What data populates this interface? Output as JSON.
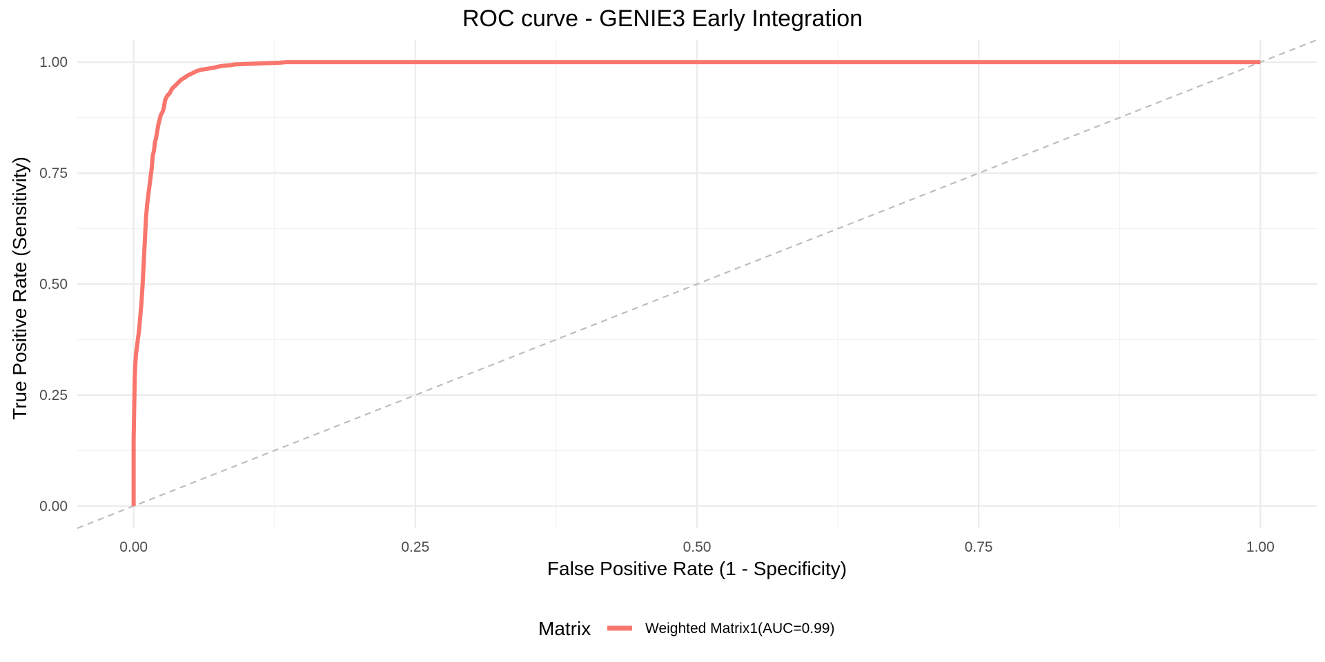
{
  "chart_data": {
    "type": "line",
    "title": "ROC curve - GENIE3 Early Integration",
    "xlabel": "False Positive Rate (1 - Specificity)",
    "ylabel": "True Positive Rate (Sensitivity)",
    "xlim": [
      -0.05,
      1.05
    ],
    "ylim": [
      -0.05,
      1.05
    ],
    "x_ticks": [
      0.0,
      0.25,
      0.5,
      0.75,
      1.0
    ],
    "x_tick_labels": [
      "0.00",
      "0.25",
      "0.50",
      "0.75",
      "1.00"
    ],
    "y_ticks": [
      0.0,
      0.25,
      0.5,
      0.75,
      1.0
    ],
    "y_tick_labels": [
      "0.00",
      "0.25",
      "0.50",
      "0.75",
      "1.00"
    ],
    "grid": true,
    "legend": {
      "title": "Matrix",
      "position": "bottom"
    },
    "reference_line": {
      "style": "dashed",
      "color": "#bdbdbd",
      "x": [
        -0.05,
        1.05
      ],
      "y": [
        -0.05,
        1.05
      ]
    },
    "series": [
      {
        "name": "Weighted Matrix1(AUC=0.99)",
        "color": "#F8766D",
        "x": [
          0.0,
          0.0,
          0.0005,
          0.001,
          0.0015,
          0.002,
          0.003,
          0.004,
          0.005,
          0.006,
          0.007,
          0.008,
          0.009,
          0.01,
          0.011,
          0.012,
          0.013,
          0.014,
          0.015,
          0.016,
          0.017,
          0.018,
          0.019,
          0.02,
          0.021,
          0.022,
          0.023,
          0.024,
          0.025,
          0.026,
          0.027,
          0.028,
          0.03,
          0.032,
          0.034,
          0.036,
          0.038,
          0.04,
          0.042,
          0.045,
          0.048,
          0.052,
          0.056,
          0.06,
          0.065,
          0.07,
          0.075,
          0.08,
          0.085,
          0.09,
          0.1,
          0.11,
          0.12,
          0.13,
          0.135,
          0.14,
          0.2,
          0.4,
          0.6,
          0.8,
          1.0
        ],
        "y": [
          0.0,
          0.15,
          0.22,
          0.29,
          0.32,
          0.34,
          0.36,
          0.38,
          0.4,
          0.43,
          0.46,
          0.5,
          0.55,
          0.6,
          0.65,
          0.68,
          0.7,
          0.72,
          0.74,
          0.76,
          0.79,
          0.8,
          0.82,
          0.83,
          0.845,
          0.86,
          0.87,
          0.88,
          0.885,
          0.89,
          0.9,
          0.915,
          0.925,
          0.93,
          0.94,
          0.945,
          0.95,
          0.955,
          0.96,
          0.965,
          0.97,
          0.975,
          0.98,
          0.983,
          0.985,
          0.987,
          0.99,
          0.992,
          0.993,
          0.995,
          0.996,
          0.997,
          0.998,
          0.999,
          1.0,
          1.0,
          1.0,
          1.0,
          1.0,
          1.0,
          1.0
        ]
      }
    ]
  }
}
